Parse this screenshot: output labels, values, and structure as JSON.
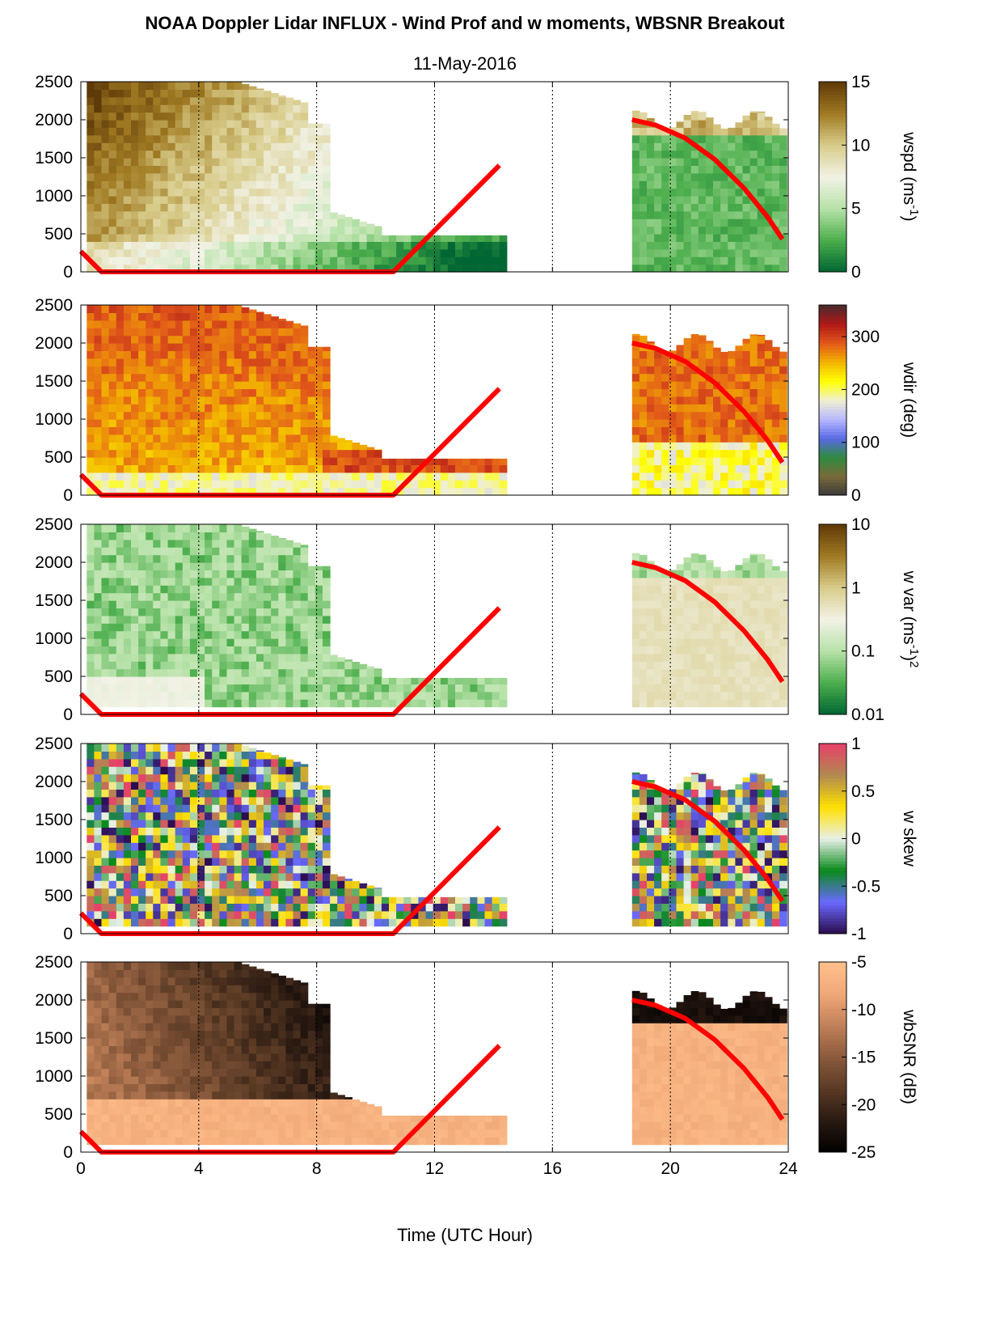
{
  "title": "NOAA Doppler Lidar INFLUX - Wind Prof and w moments, WBSNR Breakout",
  "subtitle": "11-May-2016",
  "chart_data": {
    "type": "heatmap",
    "xlabel": "Time (UTC Hour)",
    "xlim": [
      0,
      24
    ],
    "ylim": [
      0,
      2500
    ],
    "xticks": [
      "0",
      "4",
      "8",
      "12",
      "16",
      "20",
      "24"
    ],
    "yticks": [
      "0",
      "500",
      "1000",
      "1500",
      "2000",
      "2500"
    ],
    "grid_x": [
      4,
      8,
      12,
      16,
      20
    ],
    "data_gap": [
      14.3,
      18.7
    ],
    "boundary_layer_line": {
      "color": "#ff0000",
      "segment1": {
        "x": [
          0,
          0.7,
          10.6,
          14.2
        ],
        "y": [
          270,
          0,
          0,
          1400
        ]
      },
      "segment2": {
        "x": [
          18.7,
          19.5,
          20.5,
          21.5,
          22.5,
          23.3,
          23.8
        ],
        "y": [
          2000,
          1930,
          1760,
          1480,
          1100,
          720,
          430
        ]
      }
    },
    "panels": [
      {
        "ylabel": "wspd (ms-1)",
        "colorbar_label": "wspd (ms",
        "colorbar_label_sup": "-1",
        "colorbar_label_tail": ")",
        "colorbar_ticks": [
          "15",
          "10",
          "5",
          "0"
        ],
        "colorbar_range": [
          0,
          15
        ],
        "colormap": [
          "#006633",
          "#4cae4c",
          "#b7e2a8",
          "#f2f2e6",
          "#d8cc8a",
          "#a07a22",
          "#5e3a08"
        ]
      },
      {
        "ylabel": "wdir (deg)",
        "colorbar_label": "wdir (deg)",
        "colorbar_ticks": [
          "300",
          "200",
          "100",
          "0"
        ],
        "colorbar_range": [
          0,
          360
        ],
        "colormap": [
          "#3a3a3a",
          "#7a6a3a",
          "#2e8b3e",
          "#5a6ae6",
          "#b8b8ff",
          "#f0f0d0",
          "#ffff00",
          "#f2b300",
          "#e2581a",
          "#b01818",
          "#4a2a2a"
        ]
      },
      {
        "ylabel": "w var (ms-1)2",
        "colorbar_label": "w var (ms",
        "colorbar_label_sup": "-1",
        "colorbar_label_tail": ")",
        "colorbar_label_sup2": "2",
        "colorbar_ticks": [
          "10",
          "1",
          "0.1",
          "0.01"
        ],
        "colorbar_range": [
          0.01,
          10
        ],
        "colormap": [
          "#006633",
          "#4cae4c",
          "#b7e2a8",
          "#f2f2e6",
          "#d8cc8a",
          "#a07a22",
          "#5e3a08"
        ]
      },
      {
        "ylabel": "w skew",
        "colorbar_label": "w skew",
        "colorbar_ticks": [
          "1",
          "0.5",
          "0",
          "-0.5",
          "-1"
        ],
        "colorbar_range": [
          -1,
          1
        ],
        "colormap": [
          "#2a0a4a",
          "#6a6aff",
          "#0a8a1a",
          "#e8f0e8",
          "#ffe000",
          "#b08a50",
          "#e8406a"
        ]
      },
      {
        "ylabel": "wbSNR (dB)",
        "colorbar_label": "wbSNR (dB)",
        "colorbar_ticks": [
          "-5",
          "-10",
          "-15",
          "-20",
          "-25"
        ],
        "colorbar_range": [
          -25,
          -5
        ],
        "colormap": [
          "#000000",
          "#2a1a12",
          "#5a3a24",
          "#8a5a3c",
          "#c08058",
          "#f0a878",
          "#ffc08c"
        ]
      }
    ]
  }
}
